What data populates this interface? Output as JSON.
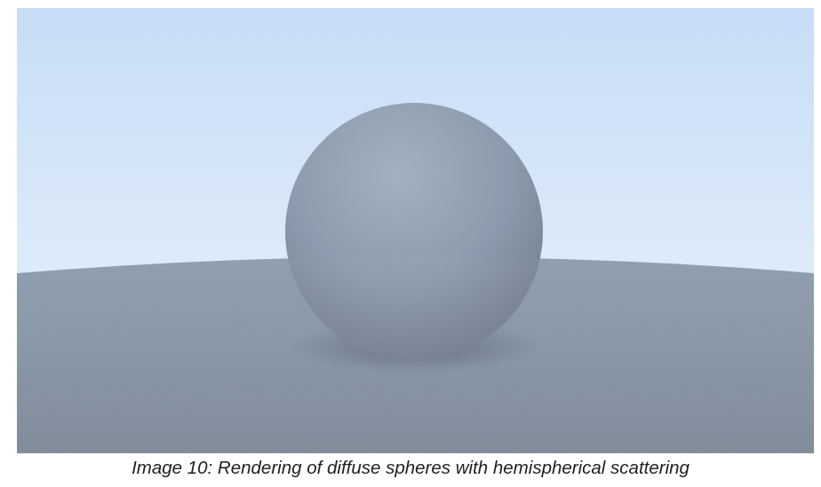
{
  "figure": {
    "caption": "Image 10: Rendering of diffuse spheres with hemispherical scattering"
  },
  "colors": {
    "sky_top": "#c7ddf6",
    "sky_bottom": "#edf4fc",
    "ground_far": "#8e9eb0",
    "ground_near": "#7e8a99",
    "sphere_highlight": "#a3b0c0",
    "sphere_base": "#8a99ad",
    "sphere_shadow": "#6c7889"
  }
}
